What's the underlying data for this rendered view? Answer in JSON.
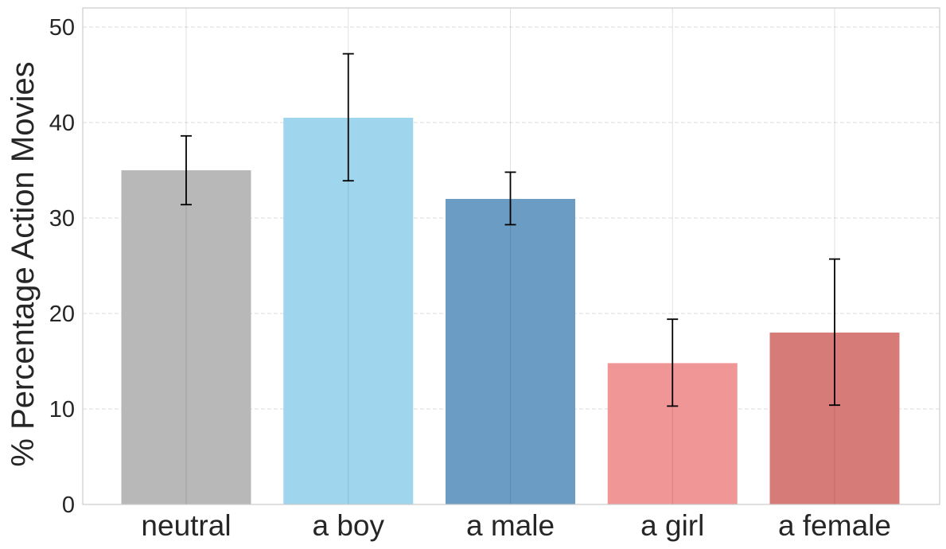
{
  "chart_data": {
    "type": "bar",
    "title": "",
    "xlabel": "",
    "ylabel": "% Percentage Action Movies",
    "ylim": [
      0,
      52
    ],
    "yticks": [
      0,
      10,
      20,
      30,
      40,
      50
    ],
    "grid": true,
    "legend": "none",
    "categories": [
      "neutral",
      "a boy",
      "a male",
      "a girl",
      "a female"
    ],
    "values": [
      35.0,
      40.5,
      32.0,
      14.8,
      18.0
    ],
    "error_low": [
      31.4,
      33.9,
      29.3,
      10.3,
      10.4
    ],
    "error_high": [
      38.6,
      47.2,
      34.8,
      19.4,
      25.7
    ],
    "colors": [
      "#b8b8b8",
      "#9fd6ed",
      "#6b9cc4",
      "#f19696",
      "#d77b79"
    ]
  }
}
